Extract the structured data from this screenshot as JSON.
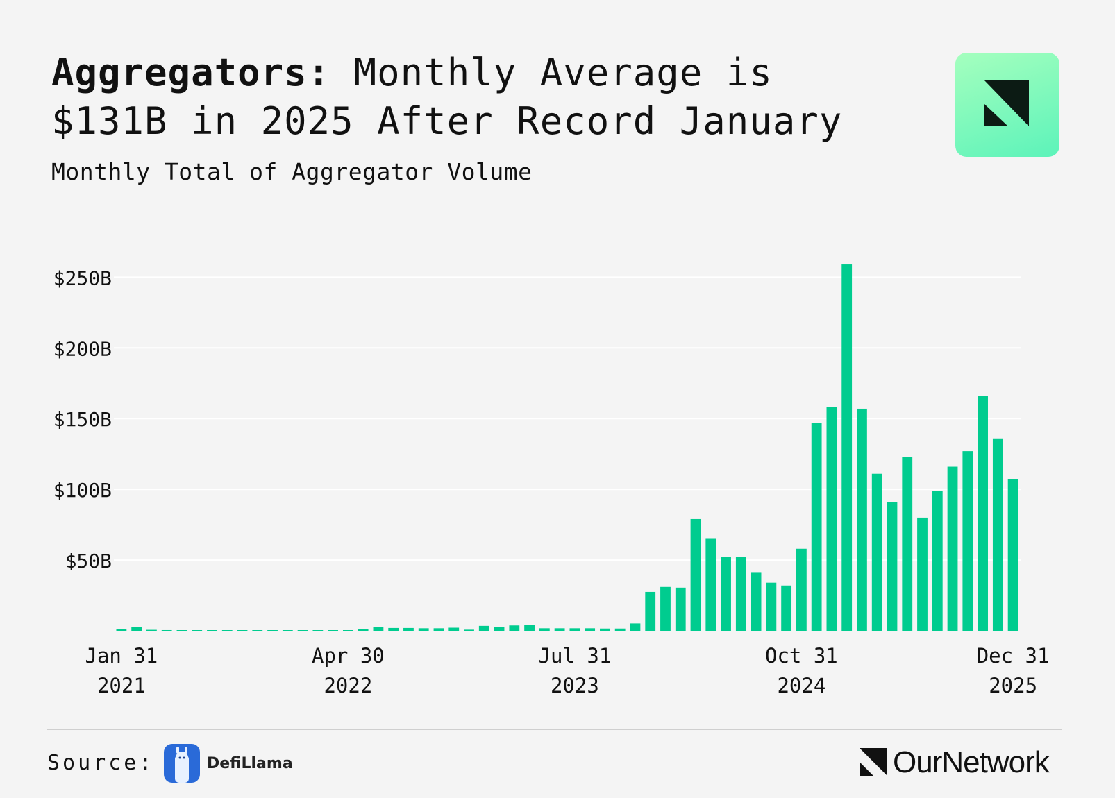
{
  "header": {
    "title_bold": "Aggregators:",
    "title_rest": " Monthly Average is $131B in 2025 After Record January",
    "subtitle": "Monthly Total of Aggregator Volume"
  },
  "footer": {
    "source_label": "Source:",
    "source_name": "DefiLlama",
    "brand_name": "OurNetwork"
  },
  "colors": {
    "bar": "#00cc8f",
    "grid": "#ffffff",
    "background": "#f4f4f4"
  },
  "chart_data": {
    "type": "bar",
    "title": "Aggregators: Monthly Average is $131B in 2025 After Record January",
    "subtitle": "Monthly Total of Aggregator Volume",
    "y_unit": "USD billions",
    "ylim": [
      0,
      260
    ],
    "yticks": [
      {
        "value": 50,
        "label": "$50B"
      },
      {
        "value": 100,
        "label": "$100B"
      },
      {
        "value": 150,
        "label": "$150B"
      },
      {
        "value": 200,
        "label": "$200B"
      },
      {
        "value": 250,
        "label": "$250B"
      }
    ],
    "xticks": [
      {
        "index": 0,
        "line1": "Jan 31",
        "line2": "2021"
      },
      {
        "index": 15,
        "line1": "Apr 30",
        "line2": "2022"
      },
      {
        "index": 30,
        "line1": "Jul 31",
        "line2": "2023"
      },
      {
        "index": 45,
        "line1": "Oct 31",
        "line2": "2024"
      },
      {
        "index": 59,
        "line1": "Dec 31",
        "line2": "2025"
      }
    ],
    "grid": true,
    "legend": "none",
    "categories": [
      "2021-01-31",
      "2021-02-28",
      "2021-03-31",
      "2021-04-30",
      "2021-05-31",
      "2021-06-30",
      "2021-07-31",
      "2021-08-31",
      "2021-09-30",
      "2021-10-31",
      "2021-11-30",
      "2021-12-31",
      "2022-01-31",
      "2022-02-28",
      "2022-03-31",
      "2022-04-30",
      "2022-05-31",
      "2022-06-30",
      "2022-07-31",
      "2022-08-31",
      "2022-09-30",
      "2022-10-31",
      "2022-11-30",
      "2022-12-31",
      "2023-01-31",
      "2023-02-28",
      "2023-03-31",
      "2023-04-30",
      "2023-05-31",
      "2023-06-30",
      "2023-07-31",
      "2023-08-31",
      "2023-09-30",
      "2023-10-31",
      "2023-11-30",
      "2023-12-31",
      "2024-01-31",
      "2024-02-29",
      "2024-03-31",
      "2024-04-30",
      "2024-05-31",
      "2024-06-30",
      "2024-07-31",
      "2024-08-31",
      "2024-09-30",
      "2024-10-31",
      "2024-11-30",
      "2024-12-31",
      "2025-01-31",
      "2025-02-28",
      "2025-03-31",
      "2025-04-30",
      "2025-05-31",
      "2025-06-30",
      "2025-07-31",
      "2025-08-31",
      "2025-09-30",
      "2025-10-31",
      "2025-11-30",
      "2025-12-31"
    ],
    "values": [
      1.2,
      2.5,
      0.7,
      0.5,
      0.4,
      0.3,
      0.3,
      0.3,
      0.3,
      0.3,
      0.3,
      0.3,
      0.3,
      0.3,
      0.3,
      0.3,
      1.0,
      2.5,
      2.0,
      2.0,
      1.8,
      1.8,
      2.2,
      0.8,
      3.5,
      2.5,
      3.8,
      4.2,
      1.8,
      1.8,
      1.8,
      1.8,
      1.6,
      1.6,
      5.2,
      27.5,
      31,
      30.5,
      79,
      65,
      52,
      52,
      41,
      34,
      32,
      58,
      147,
      158,
      259,
      157,
      111,
      91,
      123,
      80,
      99,
      116,
      127,
      166,
      136,
      107
    ]
  }
}
